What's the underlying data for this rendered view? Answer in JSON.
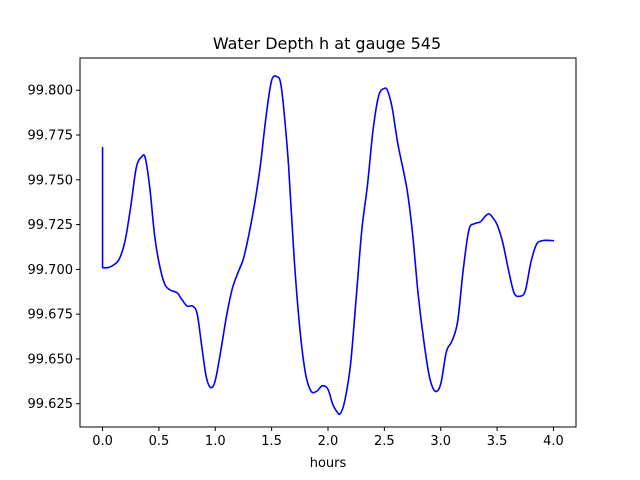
{
  "chart_data": {
    "type": "line",
    "title": "Water Depth h at gauge 545",
    "xlabel": "hours",
    "ylabel": "",
    "xlim": [
      -0.2,
      4.2
    ],
    "ylim": [
      99.612,
      99.818
    ],
    "xticks": [
      0.0,
      0.5,
      1.0,
      1.5,
      2.0,
      2.5,
      3.0,
      3.5,
      4.0
    ],
    "xtick_labels": [
      "0.0",
      "0.5",
      "1.0",
      "1.5",
      "2.0",
      "2.5",
      "3.0",
      "3.5",
      "4.0"
    ],
    "yticks": [
      99.625,
      99.65,
      99.675,
      99.7,
      99.725,
      99.75,
      99.775,
      99.8
    ],
    "ytick_labels": [
      "99.625",
      "99.650",
      "99.675",
      "99.700",
      "99.725",
      "99.750",
      "99.775",
      "99.800"
    ],
    "grid": false,
    "series": [
      {
        "color": "#0000ff",
        "x": [
          0.0,
          0.0,
          0.05,
          0.1,
          0.15,
          0.2,
          0.25,
          0.3,
          0.35,
          0.38,
          0.42,
          0.46,
          0.5,
          0.55,
          0.6,
          0.66,
          0.7,
          0.75,
          0.8,
          0.84,
          0.88,
          0.92,
          0.96,
          1.0,
          1.05,
          1.1,
          1.15,
          1.2,
          1.25,
          1.3,
          1.35,
          1.4,
          1.45,
          1.5,
          1.55,
          1.58,
          1.61,
          1.65,
          1.7,
          1.75,
          1.8,
          1.85,
          1.9,
          1.95,
          2.0,
          2.04,
          2.08,
          2.11,
          2.15,
          2.2,
          2.25,
          2.3,
          2.35,
          2.4,
          2.45,
          2.5,
          2.53,
          2.57,
          2.62,
          2.7,
          2.75,
          2.8,
          2.85,
          2.9,
          2.95,
          3.0,
          3.05,
          3.1,
          3.15,
          3.2,
          3.25,
          3.3,
          3.35,
          3.4,
          3.43,
          3.46,
          3.5,
          3.55,
          3.6,
          3.65,
          3.7,
          3.75,
          3.8,
          3.85,
          3.9,
          3.95,
          4.0
        ],
        "y": [
          99.768,
          99.701,
          99.701,
          99.7025,
          99.706,
          99.716,
          99.735,
          99.757,
          99.763,
          99.762,
          99.745,
          99.72,
          99.704,
          99.692,
          99.6885,
          99.687,
          99.6835,
          99.6795,
          99.6795,
          99.675,
          99.657,
          99.64,
          99.634,
          99.638,
          99.655,
          99.674,
          99.689,
          99.698,
          99.706,
          99.72,
          99.737,
          99.758,
          99.785,
          99.8055,
          99.8075,
          99.804,
          99.788,
          99.758,
          99.706,
          99.667,
          99.642,
          99.632,
          99.632,
          99.635,
          99.633,
          99.625,
          99.6205,
          99.6195,
          99.627,
          99.647,
          99.684,
          99.722,
          99.747,
          99.778,
          99.797,
          99.801,
          99.7995,
          99.79,
          99.77,
          99.745,
          99.72,
          99.686,
          99.66,
          99.64,
          99.632,
          99.636,
          99.654,
          99.66,
          99.671,
          99.7,
          99.722,
          99.7255,
          99.7265,
          99.73,
          99.731,
          99.729,
          99.725,
          99.715,
          99.7,
          99.687,
          99.685,
          99.688,
          99.704,
          99.714,
          99.716,
          99.7162,
          99.716
        ]
      }
    ]
  }
}
